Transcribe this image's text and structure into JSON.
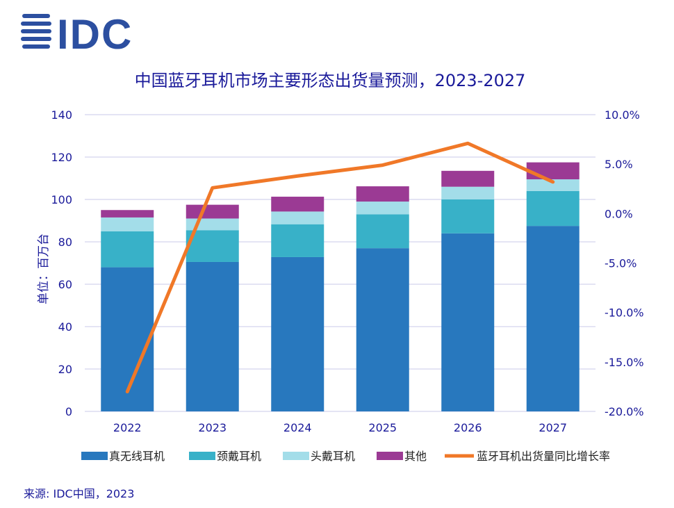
{
  "logo": {
    "text": "IDC",
    "color": "#2c4fa0"
  },
  "source": "来源: IDC中国，2023",
  "chart_data": {
    "type": "bar",
    "stacked": true,
    "title": "中国蓝牙耳机市场主要形态出货量预测，2023-2027",
    "ylabel": "单位：百万台",
    "categories": [
      "2022",
      "2023",
      "2024",
      "2025",
      "2026",
      "2027"
    ],
    "ylim": [
      0,
      140
    ],
    "yticks": [
      "0",
      "20",
      "40",
      "60",
      "80",
      "100",
      "120",
      "140"
    ],
    "y2lim": [
      -20.0,
      10.0
    ],
    "y2ticks": [
      "-20.0%",
      "-15.0%",
      "-10.0%",
      "-5.0%",
      "0.0%",
      "5.0%",
      "10.0%"
    ],
    "grid": true,
    "legend_position": "bottom",
    "series": [
      {
        "name": "真无线耳机",
        "color": "#2878be",
        "values": [
          68,
          70.5,
          72.8,
          77,
          84,
          87.5
        ]
      },
      {
        "name": "颈戴耳机",
        "color": "#38b1c8",
        "values": [
          17,
          15,
          15.5,
          16,
          16,
          16.5
        ]
      },
      {
        "name": "头戴耳机",
        "color": "#a3dde9",
        "values": [
          6.5,
          5.5,
          6,
          6,
          6,
          5.5
        ]
      },
      {
        "name": "其他",
        "color": "#9b3a94",
        "values": [
          3.5,
          6.5,
          7,
          7.2,
          7.5,
          8
        ]
      }
    ],
    "line_series": {
      "name": "蓝牙耳机出货量同比增长率",
      "color": "#f07828",
      "axis": "secondary",
      "unit": "%",
      "values": [
        -18.0,
        2.6,
        3.8,
        4.9,
        7.1,
        3.2
      ]
    }
  }
}
